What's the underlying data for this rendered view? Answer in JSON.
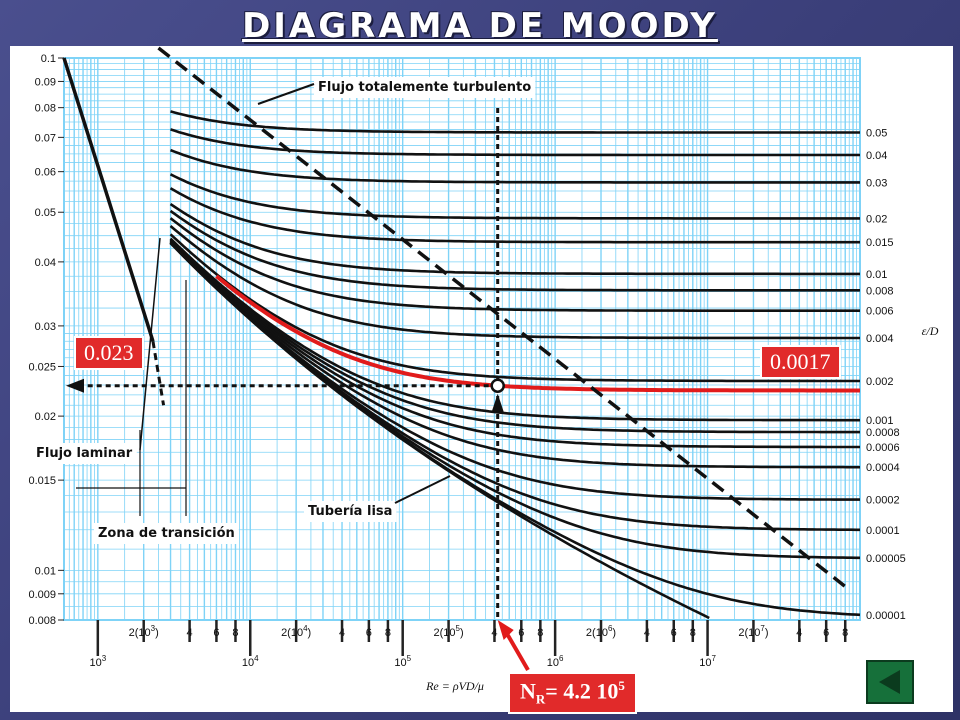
{
  "title": "DIAGRAMA DE MOODY",
  "chart_data": {
    "type": "line",
    "title": "DIAGRAMA DE MOODY",
    "x_scale": "log",
    "y_scale": "log",
    "xlim": [
      600,
      100000000
    ],
    "ylim": [
      0.008,
      0.1
    ],
    "grid": true,
    "x_major_ticks": [
      {
        "value": 1000,
        "label": "10^3"
      },
      {
        "value": 10000,
        "label": "10^4"
      },
      {
        "value": 100000,
        "label": "10^5"
      },
      {
        "value": 1000000,
        "label": "10^6"
      },
      {
        "value": 10000000,
        "label": "10^7"
      }
    ],
    "x_minor_ticks": [
      {
        "value": 2000,
        "label": "2(10^3)"
      },
      {
        "value": 4000,
        "label": "4"
      },
      {
        "value": 6000,
        "label": "6"
      },
      {
        "value": 8000,
        "label": "8"
      },
      {
        "value": 20000,
        "label": "2(10^4)"
      },
      {
        "value": 40000,
        "label": "4"
      },
      {
        "value": 60000,
        "label": "6"
      },
      {
        "value": 80000,
        "label": "8"
      },
      {
        "value": 200000,
        "label": "2(10^5)"
      },
      {
        "value": 400000,
        "label": "4"
      },
      {
        "value": 600000,
        "label": "6"
      },
      {
        "value": 800000,
        "label": "8"
      },
      {
        "value": 2000000,
        "label": "2(10^6)"
      },
      {
        "value": 4000000,
        "label": "4"
      },
      {
        "value": 6000000,
        "label": "6"
      },
      {
        "value": 8000000,
        "label": "8"
      },
      {
        "value": 20000000,
        "label": "2(10^7)"
      },
      {
        "value": 40000000,
        "label": "4"
      },
      {
        "value": 60000000,
        "label": "6"
      },
      {
        "value": 80000000,
        "label": "8"
      }
    ],
    "y_ticks": [
      0.1,
      0.09,
      0.08,
      0.07,
      0.06,
      0.05,
      0.04,
      0.03,
      0.025,
      0.02,
      0.015,
      0.01,
      0.009,
      0.008
    ],
    "xlabel": "Re = ρVD/μ",
    "right_axis_label": "ε/D",
    "roughness_values": [
      0.05,
      0.04,
      0.03,
      0.02,
      0.015,
      0.01,
      0.008,
      0.006,
      0.004,
      0.002,
      0.001,
      0.0008,
      0.0006,
      0.0004,
      0.0002,
      0.0001,
      5e-05,
      1e-05
    ],
    "roughness_labels": [
      "0.05",
      "0.04",
      "0.03",
      "0.02",
      "0.015",
      "0.01",
      "0.008",
      "0.006",
      "0.004",
      "0.002",
      "0.001",
      "0.0008",
      "0.0006",
      "0.0004",
      "0.0002",
      "0.0001",
      "0.00005",
      "0.00001"
    ],
    "laminar_line": {
      "x": [
        600,
        2300
      ],
      "y": [
        0.1,
        0.028
      ]
    },
    "highlight": {
      "roughness": 0.0017,
      "Re": 420000,
      "f": 0.023
    }
  },
  "annotations": {
    "turbulent": "Flujo totalemente turbulento",
    "laminar": "Flujo laminar",
    "transition": "Zona de transición",
    "smooth_pipe": "Tubería lisa"
  },
  "callouts": {
    "f_value": "0.023",
    "roughness_value": "0.0017",
    "re_prefix": "N",
    "re_sub": "R",
    "re_main": "= 4.2 10",
    "re_sup": "5"
  },
  "colors": {
    "grid": "#7fd3f7",
    "highlight": "#e11b1b",
    "callout_bg": "#e12a2a",
    "slide_bg": "#3b3f7a",
    "nav_button": "#16703a"
  },
  "nav": {
    "icon": "back-arrow-icon"
  }
}
